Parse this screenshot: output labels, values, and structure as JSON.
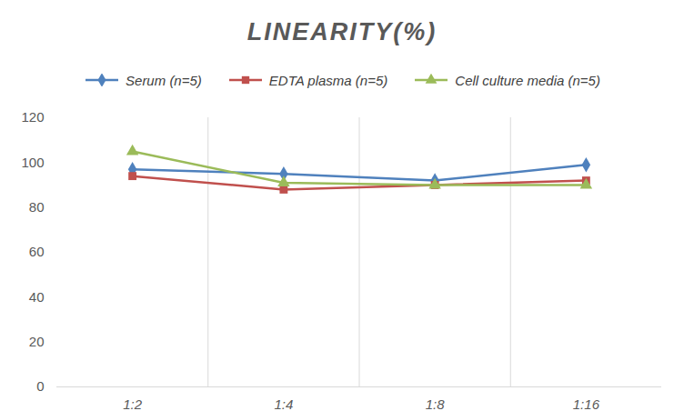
{
  "chart_data": {
    "type": "line",
    "title": "LINEARITY(%)",
    "categories": [
      "1:2",
      "1:4",
      "1:8",
      "1:16"
    ],
    "series": [
      {
        "name": "Serum (n=5)",
        "color": "#4f81bd",
        "marker": "diamond",
        "values": [
          97,
          95,
          92,
          99
        ]
      },
      {
        "name": "EDTA plasma (n=5)",
        "color": "#c0504d",
        "marker": "square",
        "values": [
          94,
          88,
          90,
          92
        ]
      },
      {
        "name": "Cell culture media (n=5)",
        "color": "#9bbb59",
        "marker": "triangle",
        "values": [
          105,
          91,
          90,
          90
        ]
      }
    ],
    "ylim": [
      0,
      120
    ],
    "yticks": [
      0,
      20,
      40,
      60,
      80,
      100,
      120
    ],
    "grid": true,
    "legend": "top"
  }
}
